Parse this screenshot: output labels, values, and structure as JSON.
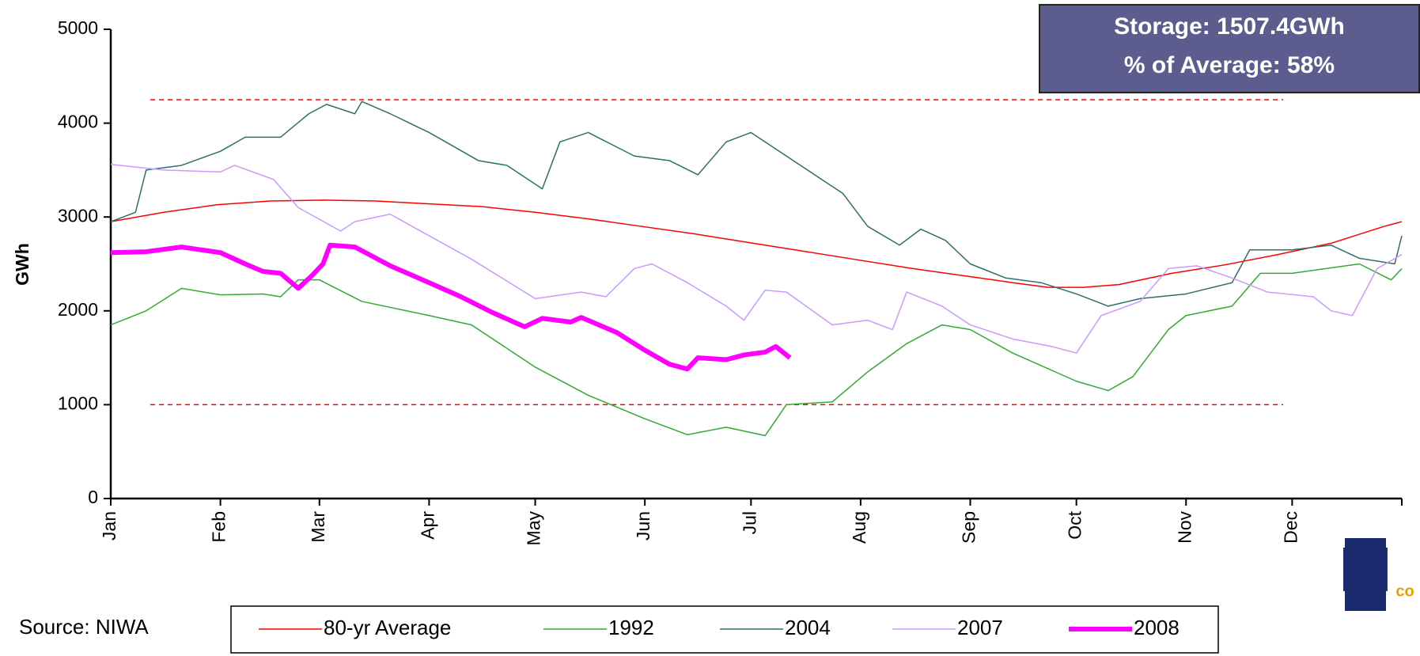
{
  "chart_data": {
    "type": "line",
    "ylabel": "GWh",
    "xlim": [
      0,
      365
    ],
    "ylim": [
      0,
      5000
    ],
    "yticks": [
      0,
      1000,
      2000,
      3000,
      4000,
      5000
    ],
    "xticks": [
      {
        "value": 0,
        "label": "Jan"
      },
      {
        "value": 31,
        "label": "Feb"
      },
      {
        "value": 59,
        "label": "Mar"
      },
      {
        "value": 90,
        "label": "Apr"
      },
      {
        "value": 120,
        "label": "May"
      },
      {
        "value": 151,
        "label": "Jun"
      },
      {
        "value": 181,
        "label": "Jul"
      },
      {
        "value": 212,
        "label": "Aug"
      },
      {
        "value": 243,
        "label": "Sep"
      },
      {
        "value": 273,
        "label": "Oct"
      },
      {
        "value": 304,
        "label": "Nov"
      },
      {
        "value": 334,
        "label": "Dec"
      }
    ],
    "reference_lines": [
      {
        "value": 4250,
        "color": "#ff0000"
      },
      {
        "value": 1000,
        "color": "#ff0000"
      }
    ],
    "annotation": [
      "Storage: 1507.4GWh",
      "% of Average: 58%"
    ],
    "source": "Source: NIWA",
    "logo": [
      "M",
      "co"
    ],
    "series": [
      {
        "name": "80-yr Average",
        "color": "#ff0000",
        "width": 1.5,
        "x": [
          0,
          15,
          30,
          45,
          60,
          75,
          90,
          105,
          120,
          135,
          150,
          165,
          180,
          195,
          210,
          225,
          240,
          255,
          265,
          275,
          285,
          300,
          315,
          330,
          345,
          360,
          365
        ],
        "values": [
          2950,
          3050,
          3130,
          3170,
          3180,
          3170,
          3140,
          3110,
          3050,
          2980,
          2900,
          2820,
          2730,
          2640,
          2550,
          2460,
          2380,
          2300,
          2250,
          2250,
          2280,
          2400,
          2490,
          2600,
          2720,
          2900,
          2950
        ]
      },
      {
        "name": "1992",
        "color": "#33aa33",
        "width": 1.5,
        "x": [
          0,
          10,
          20,
          31,
          43,
          48,
          53,
          59,
          71,
          90,
          102,
          120,
          135,
          151,
          163,
          174,
          185,
          191,
          204,
          214,
          225,
          235,
          243,
          255,
          273,
          282,
          289,
          299,
          304,
          317,
          325,
          334,
          353,
          362,
          365
        ],
        "values": [
          1850,
          2000,
          2240,
          2170,
          2180,
          2150,
          2330,
          2330,
          2100,
          1950,
          1850,
          1400,
          1100,
          850,
          680,
          760,
          670,
          1000,
          1030,
          1350,
          1650,
          1850,
          1800,
          1550,
          1250,
          1150,
          1300,
          1800,
          1950,
          2050,
          2400,
          2400,
          2500,
          2330,
          2450
        ]
      },
      {
        "name": "2004",
        "color": "#2f6f6a",
        "width": 1.5,
        "x": [
          0,
          7,
          10,
          20,
          31,
          38,
          48,
          56,
          61,
          69,
          71,
          79,
          90,
          104,
          112,
          122,
          127,
          135,
          148,
          158,
          166,
          174,
          181,
          191,
          199,
          207,
          214,
          223,
          229,
          236,
          243,
          253,
          263,
          273,
          282,
          291,
          304,
          317,
          322,
          334,
          345,
          353,
          363,
          365
        ],
        "values": [
          2950,
          3050,
          3500,
          3550,
          3700,
          3850,
          3850,
          4100,
          4200,
          4100,
          4230,
          4100,
          3900,
          3600,
          3550,
          3300,
          3800,
          3900,
          3650,
          3600,
          3450,
          3800,
          3900,
          3650,
          3450,
          3250,
          2900,
          2700,
          2870,
          2750,
          2500,
          2350,
          2300,
          2180,
          2050,
          2130,
          2180,
          2300,
          2650,
          2650,
          2700,
          2560,
          2500,
          2800
        ]
      },
      {
        "name": "2007",
        "color": "#cc99ff",
        "width": 1.5,
        "x": [
          0,
          15,
          31,
          35,
          46,
          53,
          65,
          69,
          79,
          90,
          102,
          120,
          133,
          140,
          148,
          153,
          163,
          174,
          179,
          185,
          191,
          204,
          214,
          221,
          225,
          235,
          243,
          255,
          266,
          273,
          280,
          291,
          299,
          307,
          317,
          327,
          340,
          345,
          351,
          358,
          365
        ],
        "values": [
          3560,
          3500,
          3480,
          3550,
          3400,
          3100,
          2850,
          2950,
          3030,
          2800,
          2550,
          2130,
          2200,
          2150,
          2450,
          2500,
          2300,
          2050,
          1900,
          2220,
          2200,
          1850,
          1900,
          1800,
          2200,
          2050,
          1850,
          1700,
          1620,
          1550,
          1950,
          2100,
          2450,
          2480,
          2350,
          2200,
          2150,
          2000,
          1950,
          2450,
          2600
        ]
      },
      {
        "name": "2008",
        "color": "#ff00ff",
        "width": 6,
        "x": [
          0,
          10,
          20,
          31,
          38,
          43,
          48,
          53,
          57,
          60,
          62,
          69,
          79,
          90,
          99,
          108,
          117,
          122,
          130,
          133,
          143,
          151,
          158,
          163,
          166,
          174,
          179,
          185,
          188,
          192
        ],
        "values": [
          2620,
          2630,
          2680,
          2620,
          2500,
          2420,
          2400,
          2240,
          2380,
          2500,
          2700,
          2680,
          2480,
          2300,
          2150,
          1980,
          1830,
          1920,
          1880,
          1930,
          1770,
          1580,
          1430,
          1380,
          1500,
          1480,
          1530,
          1560,
          1620,
          1500
        ]
      }
    ]
  }
}
